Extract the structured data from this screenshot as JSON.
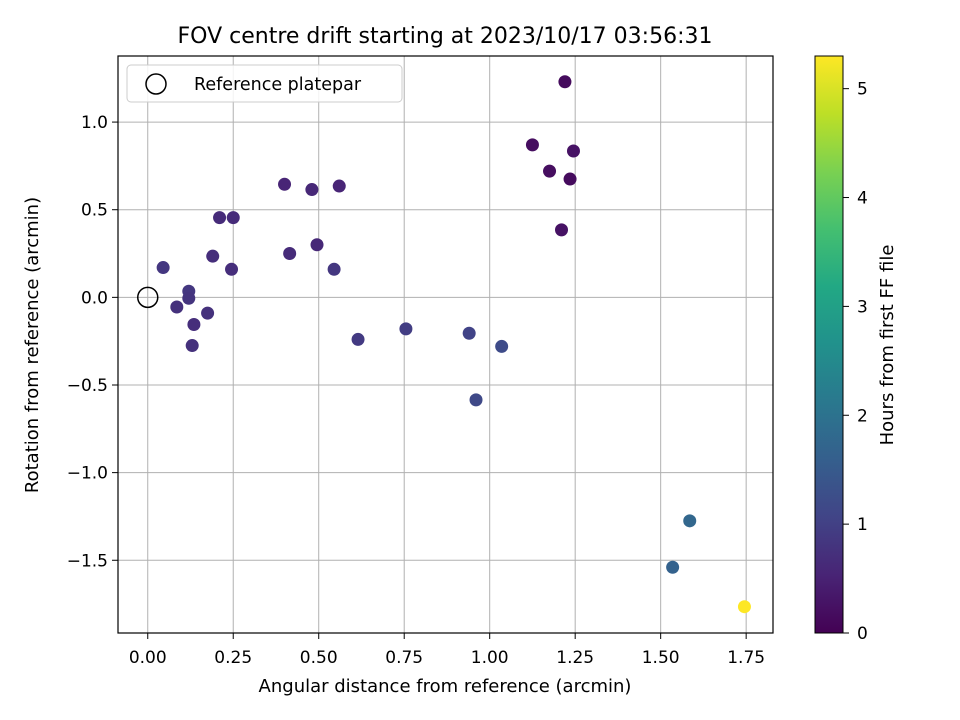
{
  "chart_data": {
    "type": "scatter",
    "title": "FOV centre drift starting at 2023/10/17 03:56:31",
    "xlabel": "Angular distance from reference (arcmin)",
    "ylabel": "Rotation from reference (arcmin)",
    "xlim": [
      -0.087,
      1.8285
    ],
    "ylim": [
      -1.915,
      1.377
    ],
    "x_ticks": [
      0.0,
      0.25,
      0.5,
      0.75,
      1.0,
      1.25,
      1.5,
      1.75
    ],
    "x_tick_labels": [
      "0.00",
      "0.25",
      "0.50",
      "0.75",
      "1.00",
      "1.25",
      "1.50",
      "1.75"
    ],
    "y_ticks": [
      -1.5,
      -1.0,
      -0.5,
      0.0,
      0.5,
      1.0
    ],
    "y_tick_labels": [
      "−1.5",
      "−1.0",
      "−0.5",
      "0.0",
      "0.5",
      "1.0"
    ],
    "grid": true,
    "legend": {
      "placement": "upper-left",
      "entries": [
        {
          "label": "Reference platepar",
          "marker": "open-circle",
          "color": "#000000"
        }
      ]
    },
    "reference_point": {
      "x": 0.0,
      "y": 0.0
    },
    "colorbar": {
      "label": "Hours from first FF file",
      "range": [
        0,
        5.3
      ],
      "ticks": [
        0,
        1,
        2,
        3,
        4,
        5
      ],
      "tick_labels": [
        "0",
        "1",
        "2",
        "3",
        "4",
        "5"
      ],
      "colormap": "viridis"
    },
    "points": [
      {
        "x": 1.22,
        "y": 1.23,
        "c": 0.15
      },
      {
        "x": 1.125,
        "y": 0.87,
        "c": 0.2
      },
      {
        "x": 1.245,
        "y": 0.835,
        "c": 0.25
      },
      {
        "x": 1.175,
        "y": 0.72,
        "c": 0.2
      },
      {
        "x": 1.235,
        "y": 0.675,
        "c": 0.15
      },
      {
        "x": 1.21,
        "y": 0.385,
        "c": 0.25
      },
      {
        "x": 0.4,
        "y": 0.645,
        "c": 0.55
      },
      {
        "x": 0.48,
        "y": 0.615,
        "c": 0.6
      },
      {
        "x": 0.56,
        "y": 0.635,
        "c": 0.55
      },
      {
        "x": 0.21,
        "y": 0.455,
        "c": 0.65
      },
      {
        "x": 0.25,
        "y": 0.455,
        "c": 0.65
      },
      {
        "x": 0.495,
        "y": 0.3,
        "c": 0.6
      },
      {
        "x": 0.415,
        "y": 0.25,
        "c": 0.65
      },
      {
        "x": 0.19,
        "y": 0.235,
        "c": 0.7
      },
      {
        "x": 0.245,
        "y": 0.16,
        "c": 0.7
      },
      {
        "x": 0.545,
        "y": 0.16,
        "c": 0.85
      },
      {
        "x": 0.045,
        "y": 0.17,
        "c": 0.85
      },
      {
        "x": 0.12,
        "y": 0.035,
        "c": 0.85
      },
      {
        "x": 0.12,
        "y": -0.005,
        "c": 0.8
      },
      {
        "x": 0.085,
        "y": -0.055,
        "c": 0.75
      },
      {
        "x": 0.175,
        "y": -0.09,
        "c": 0.75
      },
      {
        "x": 0.135,
        "y": -0.155,
        "c": 0.7
      },
      {
        "x": 0.13,
        "y": -0.275,
        "c": 0.75
      },
      {
        "x": 0.615,
        "y": -0.24,
        "c": 0.9
      },
      {
        "x": 0.755,
        "y": -0.18,
        "c": 0.95
      },
      {
        "x": 0.94,
        "y": -0.205,
        "c": 1.05
      },
      {
        "x": 1.035,
        "y": -0.28,
        "c": 1.2
      },
      {
        "x": 0.96,
        "y": -0.585,
        "c": 1.15
      },
      {
        "x": 1.585,
        "y": -1.275,
        "c": 1.75
      },
      {
        "x": 1.535,
        "y": -1.54,
        "c": 1.65
      },
      {
        "x": 1.745,
        "y": -1.765,
        "c": 5.3
      }
    ]
  }
}
